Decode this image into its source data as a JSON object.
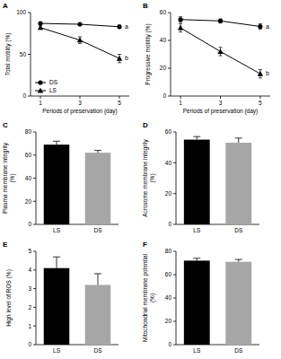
{
  "chart_data": [
    {
      "type": "line",
      "title": "A",
      "x": [
        1,
        3,
        5
      ],
      "xlim": [
        0.5,
        5.5
      ],
      "xticks": [
        1,
        3,
        5
      ],
      "ylim": [
        0,
        100
      ],
      "yticks": [
        0,
        50,
        100
      ],
      "x_label": "Periods of preservation (day)",
      "y_label": "Total motility (%)",
      "legend": "lower left",
      "series": [
        {
          "name": "DS",
          "color": "#000000",
          "marker": "circle",
          "values": [
            87,
            86,
            83
          ],
          "errors": [
            1.5,
            1,
            2
          ]
        },
        {
          "name": "LS",
          "color": "#000000",
          "marker": "triangle",
          "values": [
            82,
            67,
            45
          ],
          "errors": [
            2,
            4,
            5
          ]
        }
      ],
      "annotations": [
        "a",
        "b"
      ]
    },
    {
      "type": "line",
      "title": "B",
      "x": [
        1,
        3,
        5
      ],
      "xlim": [
        0.5,
        5.5
      ],
      "xticks": [
        1,
        3,
        5
      ],
      "ylim": [
        0,
        60
      ],
      "yticks": [
        0,
        20,
        40,
        60
      ],
      "x_label": "Periods of preservation (day)",
      "y_label": "Progressive motility (%)",
      "series": [
        {
          "color": "#000000",
          "marker": "circle",
          "values": [
            55,
            54,
            50
          ],
          "errors": [
            2,
            1.5,
            2
          ]
        },
        {
          "color": "#000000",
          "marker": "triangle",
          "values": [
            49,
            32,
            16
          ],
          "errors": [
            3,
            3,
            3
          ]
        }
      ],
      "annotations": [
        "a",
        "b"
      ]
    },
    {
      "type": "bar",
      "title": "C",
      "categories": [
        "LS",
        "DS"
      ],
      "values": [
        69,
        62
      ],
      "errors": [
        3,
        2
      ],
      "colors": [
        "#000000",
        "#a6a6a6"
      ],
      "ylim": [
        0,
        80
      ],
      "yticks": [
        0,
        20,
        40,
        60,
        80
      ],
      "y_label": "Plasma membrane integrity (%)"
    },
    {
      "type": "bar",
      "title": "D",
      "categories": [
        "LS",
        "DS"
      ],
      "values": [
        55,
        53
      ],
      "errors": [
        2,
        3
      ],
      "colors": [
        "#000000",
        "#a6a6a6"
      ],
      "ylim": [
        0,
        60
      ],
      "yticks": [
        0,
        20,
        40,
        60
      ],
      "y_label": "Acrosome membrane integrity (%)"
    },
    {
      "type": "bar",
      "title": "E",
      "categories": [
        "LS",
        "DS"
      ],
      "values": [
        4.1,
        3.2
      ],
      "errors": [
        0.6,
        0.6
      ],
      "colors": [
        "#000000",
        "#a6a6a6"
      ],
      "ylim": [
        0,
        5
      ],
      "yticks": [
        0,
        1,
        2,
        3,
        4,
        5
      ],
      "y_label": "High level of ROS (%)"
    },
    {
      "type": "bar",
      "title": "F",
      "categories": [
        "LS",
        "DS"
      ],
      "values": [
        72,
        71
      ],
      "errors": [
        2,
        2
      ],
      "colors": [
        "#000000",
        "#a6a6a6"
      ],
      "ylim": [
        0,
        80
      ],
      "yticks": [
        0,
        20,
        40,
        60,
        80
      ],
      "y_label": "Mitochondrial membrane potential (%)"
    }
  ]
}
